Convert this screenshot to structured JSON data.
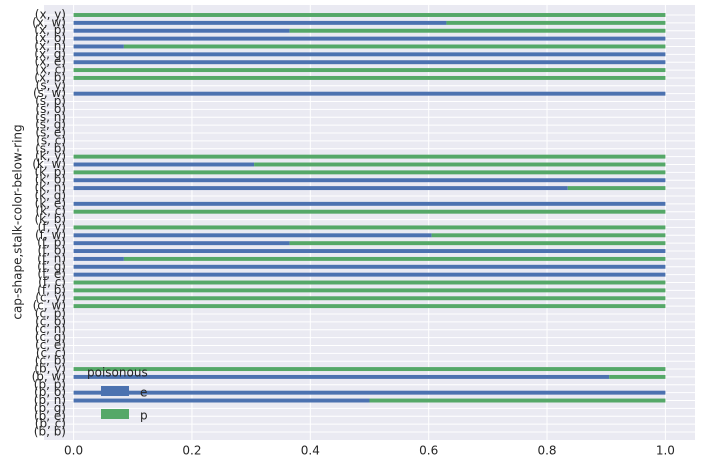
{
  "chart_data": {
    "type": "barh_stacked",
    "ylabel": "cap-shape,stalk-color-below-ring",
    "legend_title": "poisonous",
    "legend_loc": "lower left",
    "grid": true,
    "categories": [
      "(b, b)",
      "(b, c)",
      "(b, e)",
      "(b, g)",
      "(b, n)",
      "(b, o)",
      "(b, p)",
      "(b, w)",
      "(b, y)",
      "(c, b)",
      "(c, c)",
      "(c, e)",
      "(c, g)",
      "(c, n)",
      "(c, o)",
      "(c, p)",
      "(c, w)",
      "(c, y)",
      "(f, b)",
      "(f, c)",
      "(f, e)",
      "(f, g)",
      "(f, n)",
      "(f, o)",
      "(f, p)",
      "(f, w)",
      "(f, y)",
      "(k, b)",
      "(k, c)",
      "(k, e)",
      "(k, g)",
      "(k, n)",
      "(k, o)",
      "(k, p)",
      "(k, w)",
      "(k, y)",
      "(s, b)",
      "(s, c)",
      "(s, e)",
      "(s, g)",
      "(s, n)",
      "(s, o)",
      "(s, p)",
      "(s, w)",
      "(s, y)",
      "(x, b)",
      "(x, c)",
      "(x, e)",
      "(x, g)",
      "(x, n)",
      "(x, o)",
      "(x, p)",
      "(x, w)",
      "(x, y)"
    ],
    "series": [
      {
        "name": "e",
        "color": "#4c72b0",
        "values": [
          null,
          null,
          null,
          null,
          0.5,
          1,
          null,
          0.905,
          0,
          null,
          null,
          null,
          null,
          null,
          null,
          null,
          0,
          0,
          0,
          0,
          1,
          1,
          0.085,
          1,
          0.365,
          0.605,
          0,
          null,
          0,
          1,
          null,
          0.835,
          1,
          0,
          0.305,
          0,
          null,
          null,
          null,
          null,
          null,
          null,
          null,
          1,
          null,
          0,
          0,
          1,
          1,
          0.085,
          1,
          0.365,
          0.63,
          0
        ]
      },
      {
        "name": "p",
        "color": "#55a868",
        "values": [
          null,
          null,
          null,
          null,
          0.5,
          0,
          null,
          0.095,
          1,
          null,
          null,
          null,
          null,
          null,
          null,
          null,
          1,
          1,
          1,
          1,
          0,
          0,
          0.915,
          0,
          0.635,
          0.395,
          1,
          null,
          1,
          0,
          null,
          0.165,
          0,
          1,
          0.695,
          1,
          null,
          null,
          null,
          null,
          null,
          null,
          null,
          0,
          null,
          1,
          1,
          0,
          0,
          0.915,
          0,
          0.635,
          0.37,
          1
        ]
      }
    ],
    "xlim": [
      -0.05,
      1.05
    ],
    "xticks": [
      {
        "value": 0,
        "label": "0.0"
      },
      0.2,
      0.4,
      0.6,
      0.8,
      {
        "value": 1,
        "label": "1.0"
      }
    ]
  }
}
